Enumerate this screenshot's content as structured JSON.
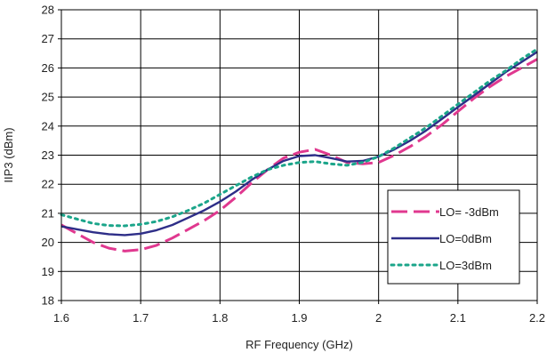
{
  "chart_data": {
    "type": "line",
    "title": "",
    "xlabel": "RF Frequency (GHz)",
    "ylabel": "IIP3 (dBm)",
    "xlim": [
      1.6,
      2.2
    ],
    "ylim": [
      18,
      28
    ],
    "x_ticks": [
      "1.6",
      "1.7",
      "1.8",
      "1.9",
      "2",
      "2.1",
      "2.2"
    ],
    "y_ticks": [
      "18",
      "19",
      "20",
      "21",
      "22",
      "23",
      "24",
      "25",
      "26",
      "27",
      "28"
    ],
    "grid": true,
    "legend_position": "bottom-right",
    "series": [
      {
        "name": "LO= -3dBm",
        "color": "#e0388f",
        "style": "dashed",
        "x": [
          1.6,
          1.62,
          1.64,
          1.66,
          1.68,
          1.7,
          1.72,
          1.74,
          1.76,
          1.78,
          1.8,
          1.82,
          1.84,
          1.86,
          1.88,
          1.9,
          1.92,
          1.94,
          1.96,
          1.98,
          2.0,
          2.02,
          2.04,
          2.06,
          2.08,
          2.1,
          2.12,
          2.14,
          2.16,
          2.18,
          2.2
        ],
        "y": [
          20.6,
          20.3,
          20.0,
          19.8,
          19.7,
          19.75,
          19.9,
          20.15,
          20.45,
          20.75,
          21.1,
          21.55,
          22.05,
          22.5,
          22.9,
          23.1,
          23.2,
          23.0,
          22.75,
          22.7,
          22.75,
          23.0,
          23.3,
          23.65,
          24.05,
          24.5,
          24.95,
          25.35,
          25.7,
          26.0,
          26.3
        ]
      },
      {
        "name": "LO=0dBm",
        "color": "#2e2e88",
        "style": "solid",
        "x": [
          1.6,
          1.62,
          1.64,
          1.66,
          1.68,
          1.7,
          1.72,
          1.74,
          1.76,
          1.78,
          1.8,
          1.82,
          1.84,
          1.86,
          1.88,
          1.9,
          1.92,
          1.94,
          1.96,
          1.98,
          2.0,
          2.02,
          2.04,
          2.06,
          2.08,
          2.1,
          2.12,
          2.14,
          2.16,
          2.18,
          2.2
        ],
        "y": [
          20.55,
          20.45,
          20.35,
          20.28,
          20.25,
          20.3,
          20.42,
          20.6,
          20.85,
          21.1,
          21.4,
          21.75,
          22.15,
          22.5,
          22.8,
          22.97,
          23.0,
          22.9,
          22.78,
          22.8,
          22.95,
          23.2,
          23.5,
          23.85,
          24.25,
          24.65,
          25.05,
          25.45,
          25.85,
          26.2,
          26.55
        ]
      },
      {
        "name": "LO=3dBm",
        "color": "#1ba58a",
        "style": "dotted",
        "x": [
          1.6,
          1.62,
          1.64,
          1.66,
          1.68,
          1.7,
          1.72,
          1.74,
          1.76,
          1.78,
          1.8,
          1.82,
          1.84,
          1.86,
          1.88,
          1.9,
          1.92,
          1.94,
          1.96,
          1.98,
          2.0,
          2.02,
          2.04,
          2.06,
          2.08,
          2.1,
          2.12,
          2.14,
          2.16,
          2.18,
          2.2
        ],
        "y": [
          20.95,
          20.8,
          20.65,
          20.58,
          20.57,
          20.62,
          20.72,
          20.88,
          21.1,
          21.35,
          21.65,
          21.95,
          22.25,
          22.5,
          22.65,
          22.75,
          22.78,
          22.7,
          22.65,
          22.75,
          22.95,
          23.25,
          23.6,
          23.95,
          24.35,
          24.75,
          25.15,
          25.55,
          25.9,
          26.3,
          26.65
        ]
      }
    ]
  }
}
